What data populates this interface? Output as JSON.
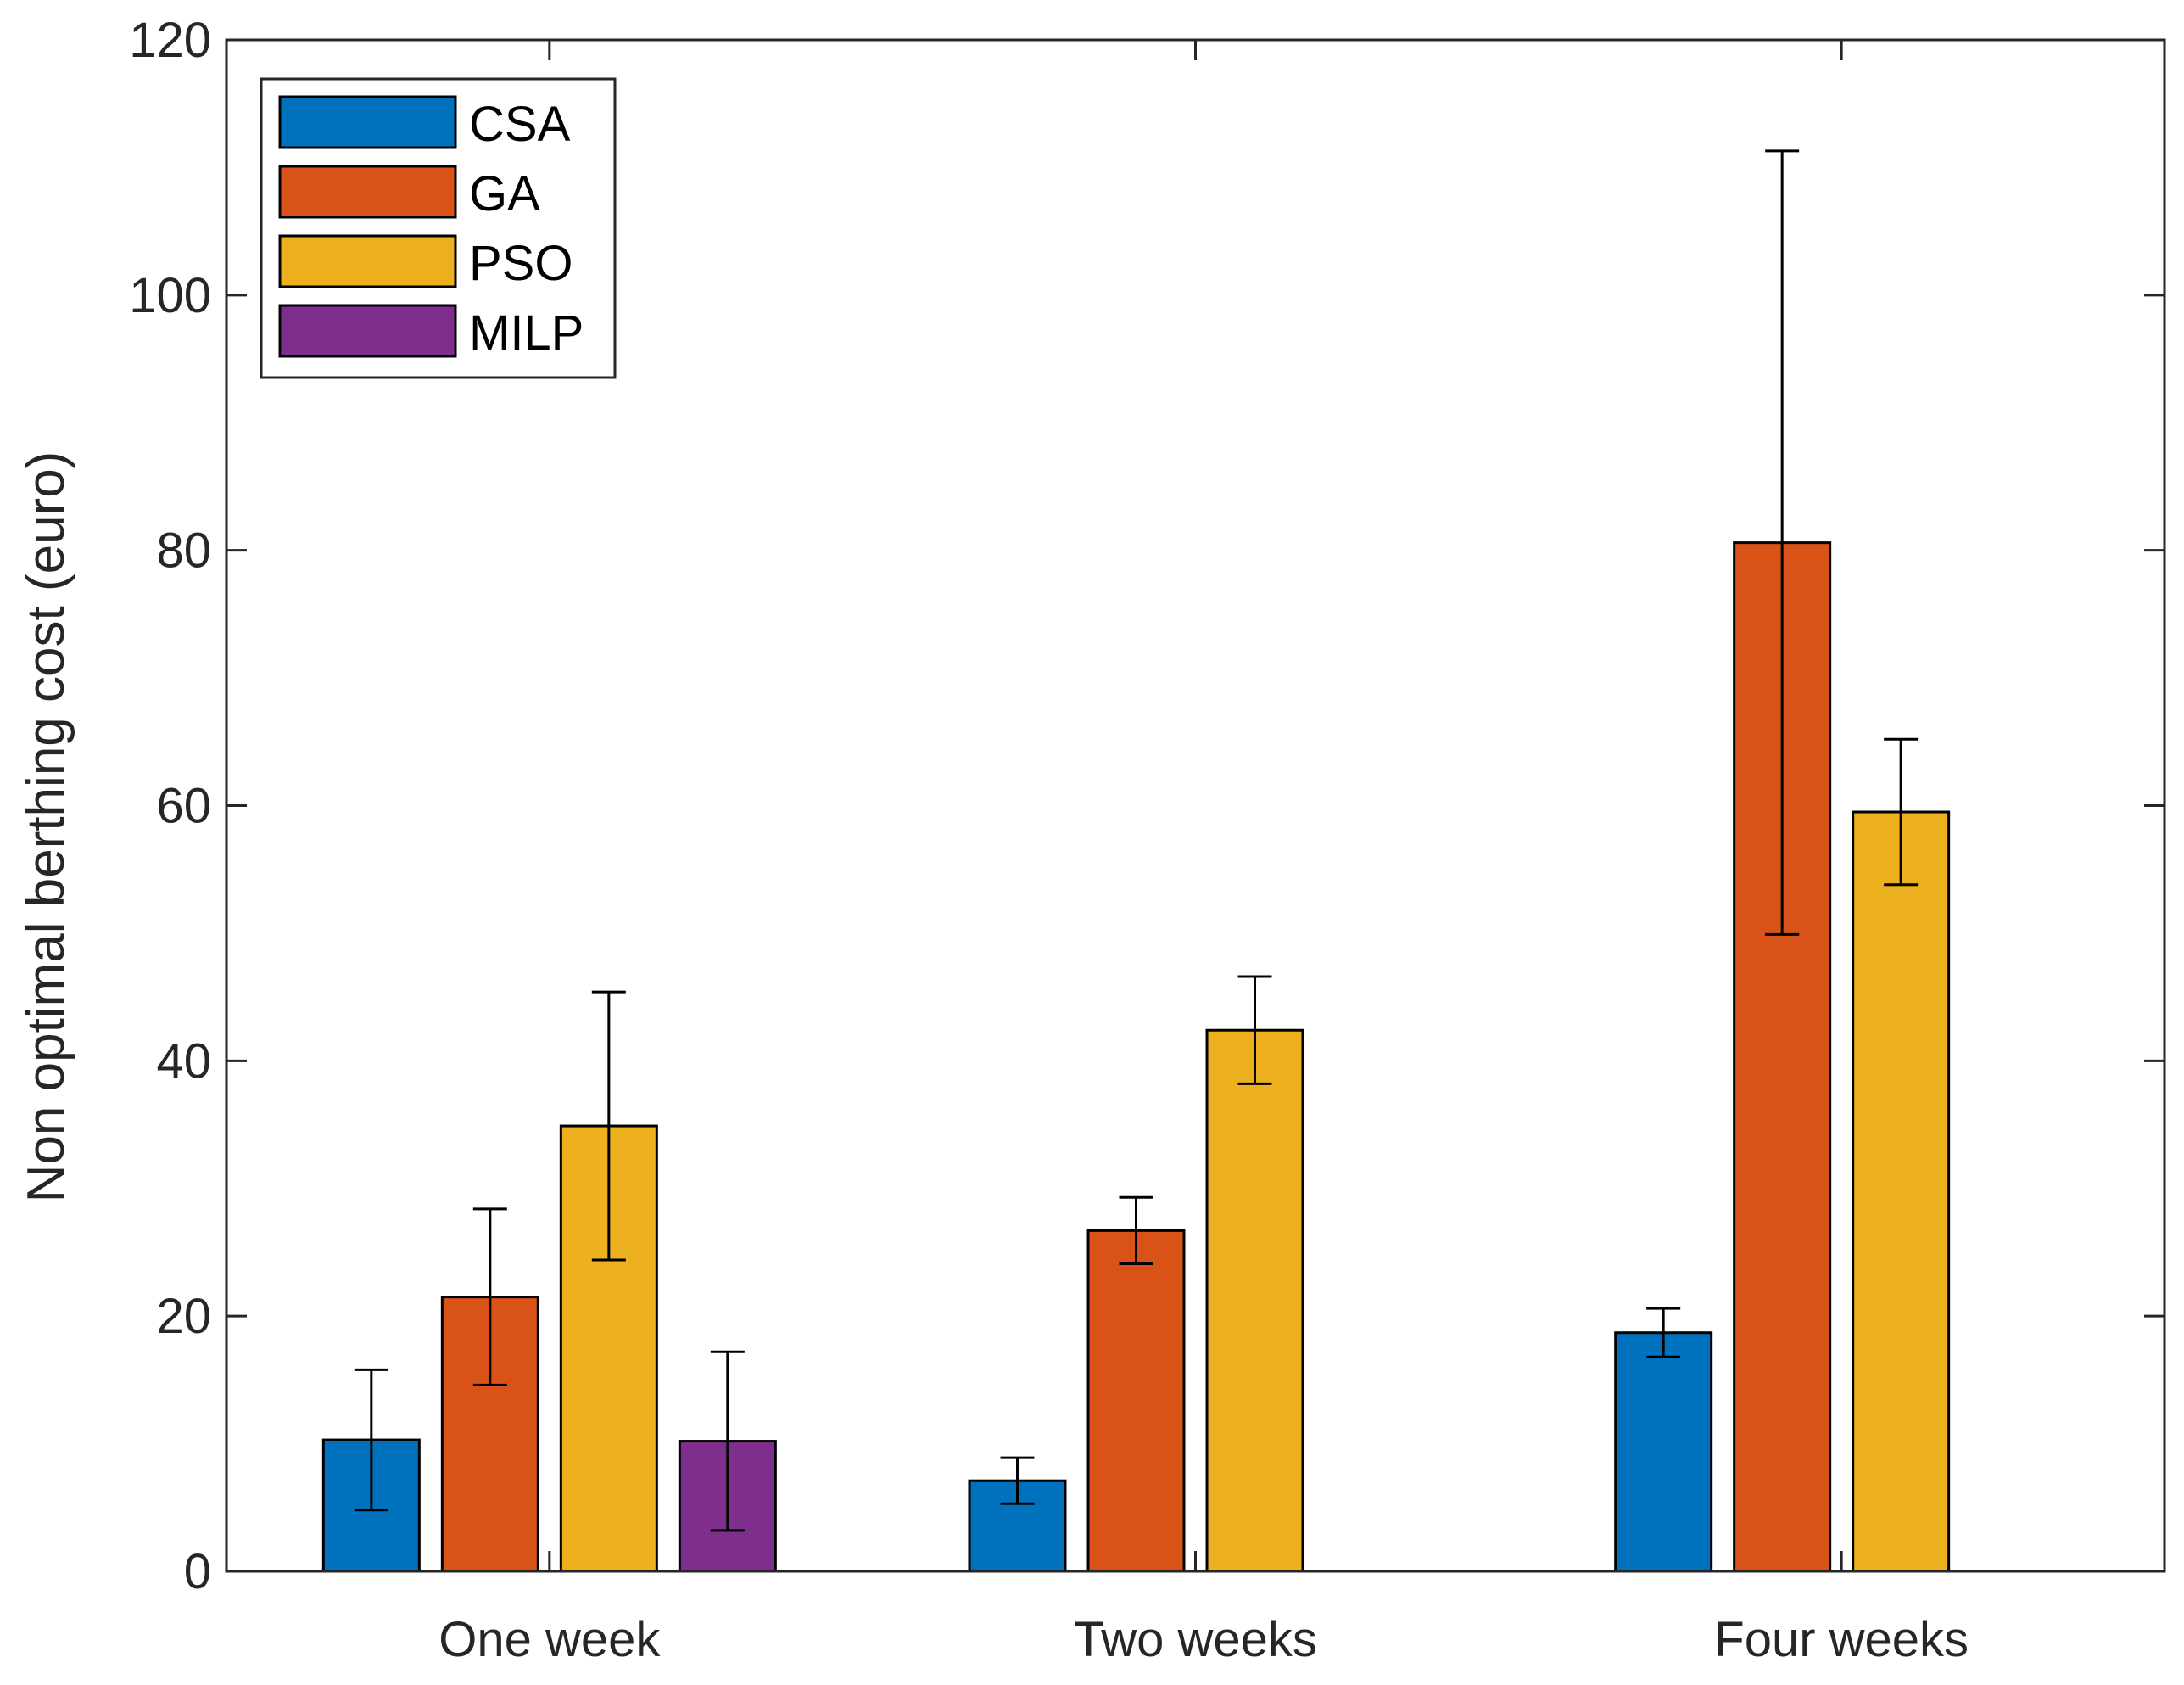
{
  "chart_data": {
    "type": "bar",
    "title": "",
    "xlabel": "",
    "ylabel": "Non optimal berthing cost (euro)",
    "ylim": [
      0,
      120
    ],
    "yticks": [
      0,
      20,
      40,
      60,
      80,
      100,
      120
    ],
    "categories": [
      "One week",
      "Two weeks",
      "Four weeks"
    ],
    "legend_position": "top-left",
    "grid": false,
    "series": [
      {
        "name": "CSA",
        "color": "#0072BD",
        "values": [
          10.3,
          7.1,
          18.7
        ],
        "errors": [
          5.5,
          1.8,
          1.9
        ]
      },
      {
        "name": "GA",
        "color": "#D95319",
        "values": [
          21.5,
          26.7,
          80.6
        ],
        "errors": [
          6.9,
          2.6,
          30.7
        ]
      },
      {
        "name": "PSO",
        "color": "#EDB120",
        "values": [
          34.9,
          42.4,
          59.5
        ],
        "errors": [
          10.5,
          4.2,
          5.7
        ]
      },
      {
        "name": "MILP",
        "color": "#7E2F8E",
        "values": [
          10.2,
          null,
          null
        ],
        "errors": [
          7.0,
          null,
          null
        ]
      }
    ]
  }
}
